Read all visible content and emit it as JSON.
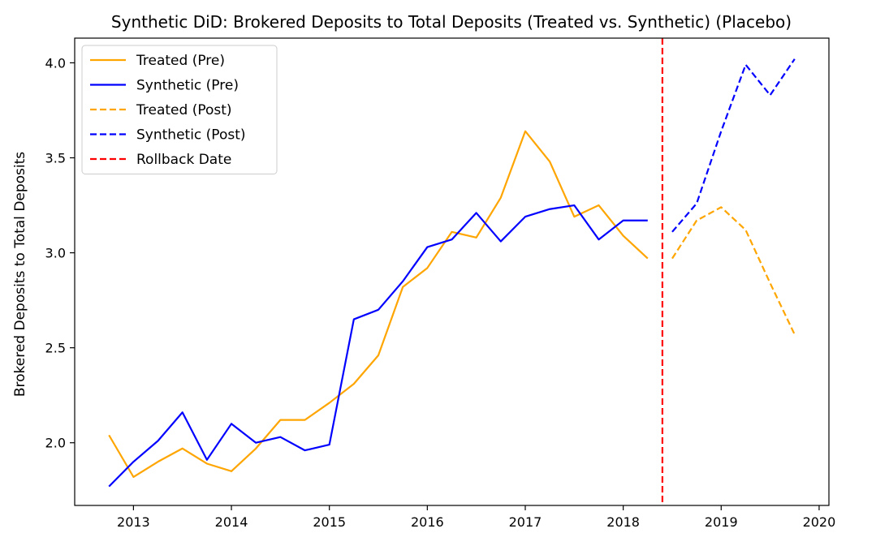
{
  "chart_data": {
    "type": "line",
    "title": "Synthetic DiD: Brokered Deposits to Total Deposits (Treated vs. Synthetic) (Placebo)",
    "xlabel": "",
    "ylabel": "Brokered Deposits to Total Deposits",
    "xlim": [
      2012.4,
      2020.1
    ],
    "ylim": [
      1.67,
      4.13
    ],
    "x_ticks": [
      2013,
      2014,
      2015,
      2016,
      2017,
      2018,
      2019,
      2020
    ],
    "x_tick_labels": [
      "2013",
      "2014",
      "2015",
      "2016",
      "2017",
      "2018",
      "2019",
      "2020"
    ],
    "y_ticks": [
      2.0,
      2.5,
      3.0,
      3.5,
      4.0
    ],
    "y_tick_labels": [
      "2.0",
      "2.5",
      "3.0",
      "3.5",
      "4.0"
    ],
    "grid": false,
    "legend_position": "top-left",
    "series": [
      {
        "name": "Treated (Pre)",
        "color": "#ffa500",
        "style": "solid",
        "x": [
          2012.75,
          2013.0,
          2013.25,
          2013.5,
          2013.75,
          2014.0,
          2014.25,
          2014.5,
          2014.75,
          2015.0,
          2015.25,
          2015.5,
          2015.75,
          2016.0,
          2016.25,
          2016.5,
          2016.75,
          2017.0,
          2017.25,
          2017.5,
          2017.75,
          2018.0,
          2018.25
        ],
        "y": [
          2.04,
          1.82,
          1.9,
          1.97,
          1.89,
          1.85,
          1.97,
          2.12,
          2.12,
          2.21,
          2.31,
          2.46,
          2.82,
          2.92,
          3.11,
          3.08,
          3.29,
          3.64,
          3.48,
          3.19,
          3.25,
          3.09,
          2.97
        ]
      },
      {
        "name": "Synthetic (Pre)",
        "color": "#0000ff",
        "style": "solid",
        "x": [
          2012.75,
          2013.0,
          2013.25,
          2013.5,
          2013.75,
          2014.0,
          2014.25,
          2014.5,
          2014.75,
          2015.0,
          2015.25,
          2015.5,
          2015.75,
          2016.0,
          2016.25,
          2016.5,
          2016.75,
          2017.0,
          2017.25,
          2017.5,
          2017.75,
          2018.0,
          2018.25
        ],
        "y": [
          1.77,
          1.9,
          2.01,
          2.16,
          1.91,
          2.1,
          2.0,
          2.03,
          1.96,
          1.99,
          2.65,
          2.7,
          2.85,
          3.03,
          3.07,
          3.21,
          3.06,
          3.19,
          3.23,
          3.25,
          3.07,
          3.17,
          3.17
        ]
      },
      {
        "name": "Treated (Post)",
        "color": "#ffa500",
        "style": "dashed",
        "x": [
          2018.5,
          2018.75,
          2019.0,
          2019.25,
          2019.5,
          2019.75
        ],
        "y": [
          2.97,
          3.17,
          3.24,
          3.12,
          2.84,
          2.57
        ]
      },
      {
        "name": "Synthetic (Post)",
        "color": "#0000ff",
        "style": "dashed",
        "x": [
          2018.5,
          2018.75,
          2019.0,
          2019.25,
          2019.5,
          2019.75
        ],
        "y": [
          3.11,
          3.26,
          3.64,
          3.99,
          3.83,
          4.02
        ]
      }
    ],
    "vlines": [
      {
        "name": "Rollback Date",
        "x": 2018.4,
        "color": "#ff0000",
        "style": "dashed"
      }
    ],
    "legend_entries": [
      {
        "label": "Treated (Pre)",
        "color": "#ffa500",
        "style": "solid"
      },
      {
        "label": "Synthetic (Pre)",
        "color": "#0000ff",
        "style": "solid"
      },
      {
        "label": "Treated (Post)",
        "color": "#ffa500",
        "style": "dashed"
      },
      {
        "label": "Synthetic (Post)",
        "color": "#0000ff",
        "style": "dashed"
      },
      {
        "label": "Rollback Date",
        "color": "#ff0000",
        "style": "dashed"
      }
    ]
  }
}
